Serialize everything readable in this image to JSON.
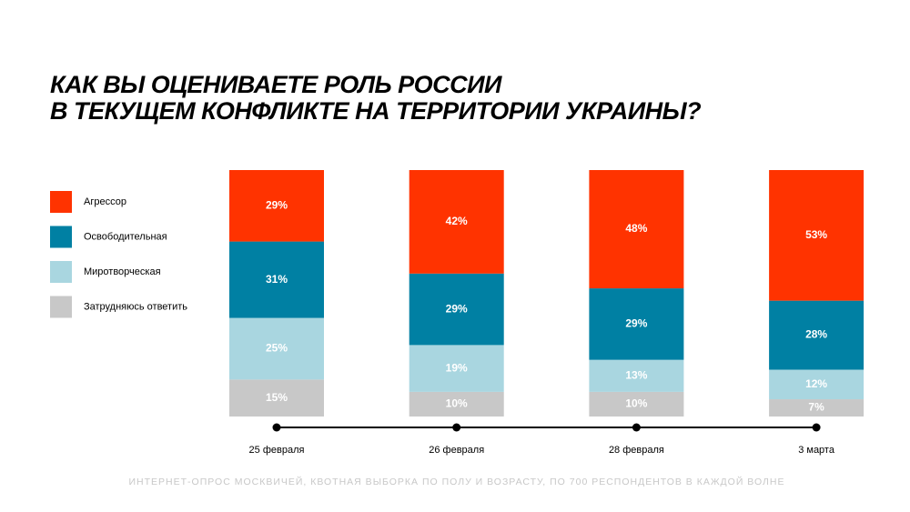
{
  "chart_data": {
    "type": "stacked-bar",
    "title": [
      "КАК ВЫ ОЦЕНИВАЕТЕ РОЛЬ РОССИИ",
      "В ТЕКУЩЕМ КОНФЛИКТЕ НА ТЕРРИТОРИИ УКРАИНЫ?"
    ],
    "categories": [
      "25 февраля",
      "26 февраля",
      "28 февраля",
      "3 марта"
    ],
    "series": [
      {
        "name": "Агрессор",
        "color": "#ff3300",
        "values": [
          29,
          42,
          48,
          53
        ],
        "value_labels": [
          "29%",
          "42%",
          "48%",
          "53%"
        ]
      },
      {
        "name": "Освободительная",
        "color": "#0080a3",
        "values": [
          31,
          29,
          29,
          28
        ],
        "value_labels": [
          "31%",
          "29%",
          "29%",
          "28%"
        ]
      },
      {
        "name": "Миротворческая",
        "color": "#a9d6e0",
        "values": [
          25,
          19,
          13,
          12
        ],
        "value_labels": [
          "25%",
          "19%",
          "13%",
          "12%"
        ]
      },
      {
        "name": "Затрудняюсь ответить",
        "color": "#c8c8c8",
        "values": [
          15,
          10,
          10,
          7
        ],
        "value_labels": [
          "15%",
          "10%",
          "10%",
          "7%"
        ]
      }
    ],
    "ylim": [
      0,
      100
    ],
    "note": "ИНТЕРНЕТ-ОПРОС МОСКВИЧЕЙ, КВОТНАЯ ВЫБОРКА ПО ПОЛУ И ВОЗРАСТУ, ПО 700 РЕСПОНДЕНТОВ В КАЖДОЙ ВОЛНЕ"
  }
}
